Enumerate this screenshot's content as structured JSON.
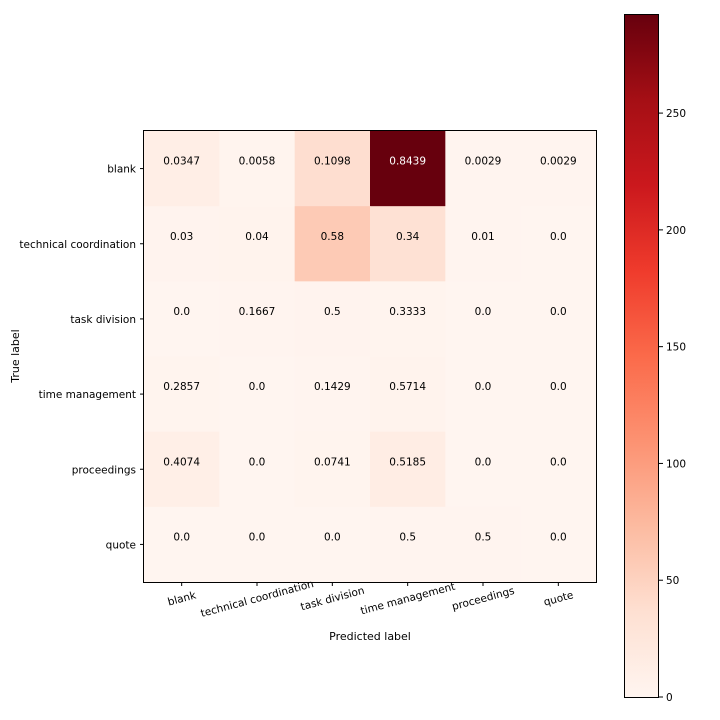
{
  "chart_data": {
    "type": "heatmap",
    "title": "",
    "xlabel": "Predicted label",
    "ylabel": "True label",
    "x_categories": [
      "blank",
      "technical coordination",
      "task division",
      "time management",
      "proceedings",
      "quote"
    ],
    "y_categories": [
      "blank",
      "technical coordination",
      "task division",
      "time management",
      "proceedings",
      "quote"
    ],
    "cell_labels": [
      [
        "0.0347",
        "0.0058",
        "0.1098",
        "0.8439",
        "0.0029",
        "0.0029"
      ],
      [
        "0.03",
        "0.04",
        "0.58",
        "0.34",
        "0.01",
        "0.0"
      ],
      [
        "0.0",
        "0.1667",
        "0.5",
        "0.3333",
        "0.0",
        "0.0"
      ],
      [
        "0.2857",
        "0.0",
        "0.1429",
        "0.5714",
        "0.0",
        "0.0"
      ],
      [
        "0.4074",
        "0.0",
        "0.0741",
        "0.5185",
        "0.0",
        "0.0"
      ],
      [
        "0.0",
        "0.0",
        "0.0",
        "0.5",
        "0.5",
        "0.0"
      ]
    ],
    "counts": [
      [
        12,
        2,
        38,
        292,
        1,
        1
      ],
      [
        3,
        4,
        58,
        34,
        1,
        0
      ],
      [
        0,
        1,
        3,
        2,
        0,
        0
      ],
      [
        2,
        0,
        1,
        4,
        0,
        0
      ],
      [
        11,
        0,
        2,
        14,
        0,
        0
      ],
      [
        0,
        0,
        0,
        1,
        1,
        0
      ]
    ],
    "colorbar": {
      "min": 0,
      "max": 292,
      "ticks": [
        0,
        50,
        100,
        150,
        200,
        250
      ],
      "colormap": "Reds"
    },
    "text_colors": {
      "dark_cell_text": "#ffffff",
      "light_cell_text": "#000000"
    }
  }
}
